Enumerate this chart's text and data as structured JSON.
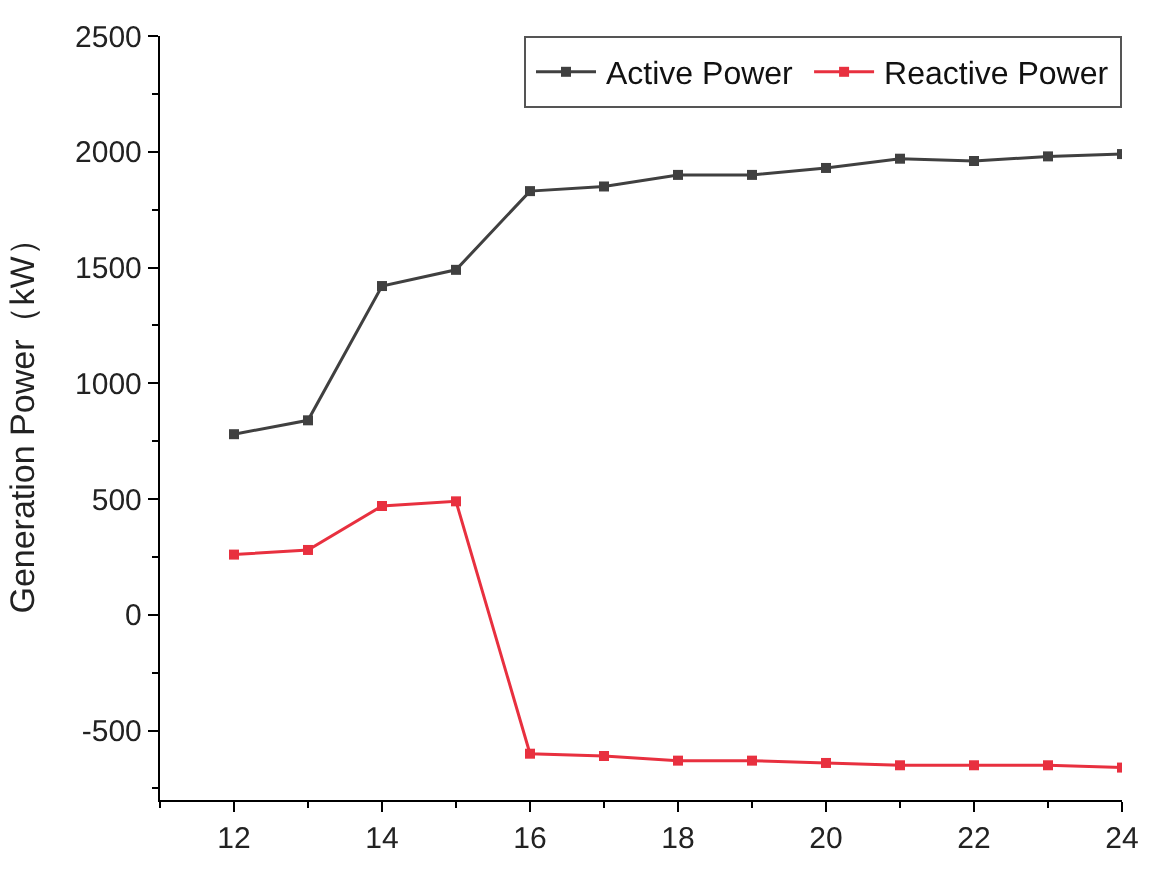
{
  "chart_data": {
    "type": "line",
    "ylabel": "Generation Power（kW）",
    "x": [
      12,
      13,
      14,
      15,
      16,
      17,
      18,
      19,
      20,
      21,
      22,
      23,
      24
    ],
    "series": [
      {
        "name": "Active Power",
        "color": "#404040",
        "values": [
          780,
          840,
          1420,
          1490,
          1830,
          1850,
          1900,
          1900,
          1930,
          1970,
          1960,
          1980,
          1990
        ]
      },
      {
        "name": "Reactive Power",
        "color": "#e8303f",
        "values": [
          260,
          280,
          470,
          490,
          -600,
          -610,
          -630,
          -630,
          -640,
          -650,
          -650,
          -650,
          -660
        ]
      }
    ],
    "xlim": [
      11,
      24
    ],
    "xticks": [
      12,
      14,
      16,
      18,
      20,
      22,
      24
    ],
    "ylim": [
      -800,
      2500
    ],
    "yticks": [
      -500,
      0,
      500,
      1000,
      1500,
      2000,
      2500
    ],
    "legend": "top right",
    "marker": "square",
    "line_style": "solid"
  }
}
